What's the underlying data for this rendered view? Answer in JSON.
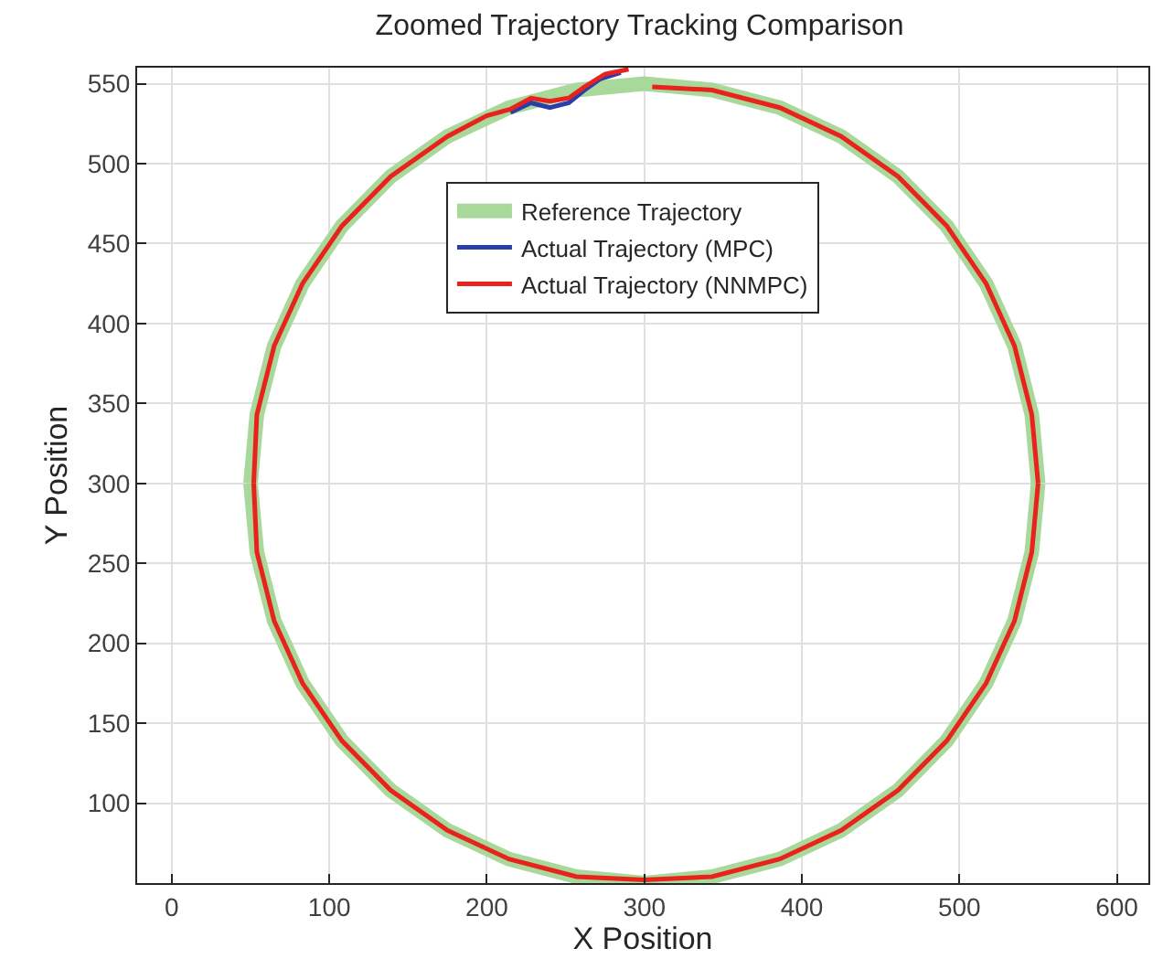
{
  "chart_data": {
    "type": "line",
    "title": "Zoomed Trajectory Tracking Comparison",
    "xlabel": "X Position",
    "ylabel": "Y Position",
    "xlim": [
      -22,
      620
    ],
    "ylim": [
      50,
      560
    ],
    "xticks": [
      0,
      100,
      200,
      300,
      400,
      500,
      600
    ],
    "yticks": [
      100,
      150,
      200,
      250,
      300,
      350,
      400,
      450,
      500,
      550
    ],
    "grid": true,
    "legend": "top",
    "marker": "none",
    "line_style": "solid",
    "series": [
      {
        "name": "Reference Trajectory",
        "color": "#a8d89a",
        "x": [
          50,
          54,
          65,
          83,
          108,
          139,
          175,
          214,
          257,
          300,
          343,
          386,
          425,
          461,
          492,
          517,
          535,
          546,
          550,
          null,
          550,
          546,
          535,
          517,
          492,
          461,
          425,
          386,
          343,
          300,
          257,
          214,
          175,
          139,
          108,
          83,
          65,
          54,
          50
        ],
        "values": [
          300,
          343,
          386,
          425,
          461,
          492,
          517,
          535,
          546,
          550,
          546,
          535,
          517,
          492,
          461,
          425,
          386,
          343,
          300,
          null,
          300,
          257,
          214,
          175,
          139,
          108,
          83,
          65,
          54,
          50,
          54,
          65,
          83,
          108,
          139,
          175,
          214,
          257,
          300
        ]
      },
      {
        "name": "Actual Trajectory (MPC)",
        "color": "#2b3ea8",
        "x": [
          215,
          228,
          240,
          252,
          262,
          272,
          285
        ],
        "values": [
          532,
          538,
          535,
          538,
          546,
          553,
          557
        ]
      },
      {
        "name": "Actual Trajectory (NNMPC)",
        "color": "#e8221c",
        "x": [
          52,
          54,
          65,
          83,
          108,
          139,
          175,
          200,
          215,
          228,
          240,
          252,
          262,
          275,
          290,
          null,
          305,
          343,
          386,
          425,
          461,
          492,
          517,
          535,
          546,
          550,
          null,
          550,
          546,
          535,
          517,
          492,
          461,
          425,
          386,
          343,
          300,
          257,
          214,
          175,
          139,
          108,
          83,
          65,
          54,
          52
        ],
        "values": [
          300,
          343,
          386,
          425,
          461,
          492,
          517,
          530,
          534,
          541,
          539,
          541,
          548,
          556,
          559,
          null,
          548,
          546,
          535,
          517,
          492,
          461,
          425,
          386,
          343,
          300,
          null,
          300,
          257,
          214,
          175,
          139,
          108,
          83,
          65,
          54,
          52,
          54,
          65,
          83,
          108,
          139,
          175,
          214,
          257,
          300
        ]
      }
    ]
  }
}
